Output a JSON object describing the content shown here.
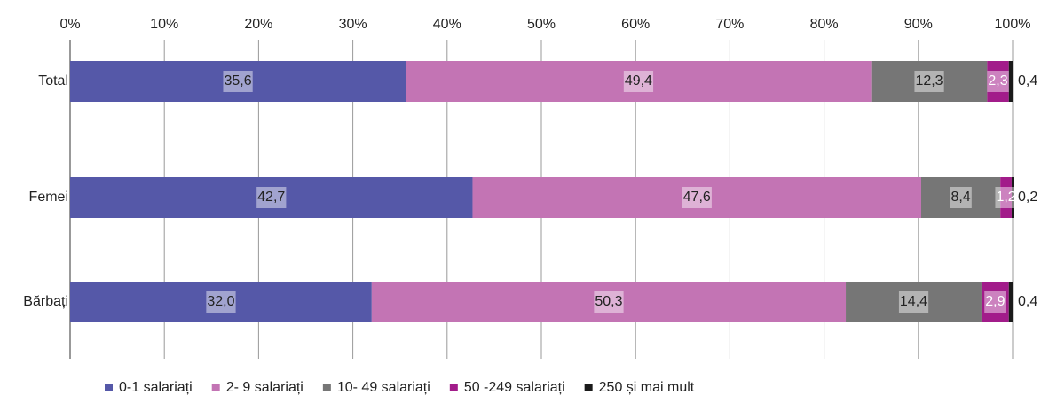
{
  "chart_data": {
    "type": "stacked-barh",
    "categories": [
      "Total",
      "Femei",
      "Bărbați"
    ],
    "series": [
      {
        "name": "0-1 salariați",
        "color": "#5558a8",
        "label_color": "#222222",
        "values": [
          35.6,
          42.7,
          32.0
        ],
        "value_labels": [
          "35,6",
          "42,7",
          "32,0"
        ]
      },
      {
        "name": "2- 9 salariați",
        "color": "#c374b4",
        "label_color": "#222222",
        "values": [
          49.4,
          47.6,
          50.3
        ],
        "value_labels": [
          "49,4",
          "47,6",
          "50,3"
        ]
      },
      {
        "name": "10- 49 salariați",
        "color": "#767676",
        "label_color": "#222222",
        "values": [
          12.3,
          8.4,
          14.4
        ],
        "value_labels": [
          "12,3",
          "8,4",
          "14,4"
        ]
      },
      {
        "name": "50 -249 salariați",
        "color": "#a21c8a",
        "label_color": "#ffffff",
        "values": [
          2.3,
          1.2,
          2.9
        ],
        "value_labels": [
          "2,3",
          "1,2",
          "2,9"
        ]
      },
      {
        "name": "250 și mai mult",
        "color": "#1a1a1a",
        "label_color": "#222222",
        "values": [
          0.4,
          0.2,
          0.4
        ],
        "value_labels": [
          "0,4",
          "0,2",
          "0,4"
        ]
      }
    ],
    "xlim": [
      0,
      100
    ],
    "xticks": [
      {
        "value": 0,
        "label": "0%"
      },
      {
        "value": 10,
        "label": "10%"
      },
      {
        "value": 20,
        "label": "20%"
      },
      {
        "value": 30,
        "label": "30%"
      },
      {
        "value": 40,
        "label": "40%"
      },
      {
        "value": 50,
        "label": "50%"
      },
      {
        "value": 60,
        "label": "60%"
      },
      {
        "value": 70,
        "label": "70%"
      },
      {
        "value": 80,
        "label": "80%"
      },
      {
        "value": 90,
        "label": "90%"
      },
      {
        "value": 100,
        "label": "100%"
      }
    ],
    "grid": true,
    "legend": "bottom"
  }
}
